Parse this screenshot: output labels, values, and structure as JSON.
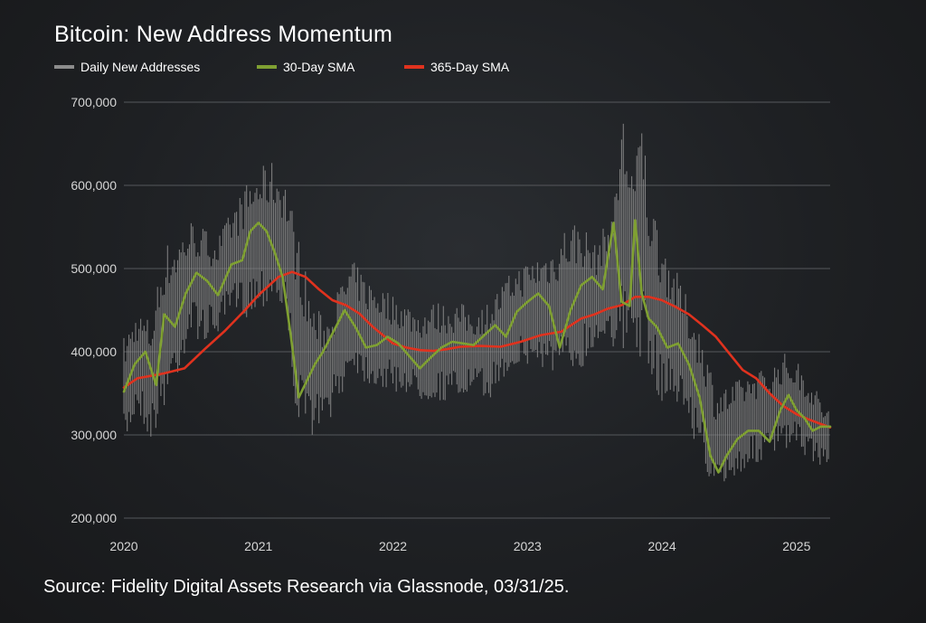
{
  "chart_data": {
    "type": "line",
    "title": "Bitcoin: New Address Momentum",
    "source": "Source: Fidelity Digital Assets Research via Glassnode, 03/31/25.",
    "xlabel": "",
    "ylabel": "",
    "xlim": [
      2020.0,
      2025.25
    ],
    "ylim": [
      200000,
      700000
    ],
    "yticks": [
      200000,
      300000,
      400000,
      500000,
      600000,
      700000
    ],
    "ytick_labels": [
      "200,000",
      "300,000",
      "400,000",
      "500,000",
      "600,000",
      "700,000"
    ],
    "xticks": [
      2020,
      2021,
      2022,
      2023,
      2024,
      2025
    ],
    "xtick_labels": [
      "2020",
      "2021",
      "2022",
      "2023",
      "2024",
      "2025"
    ],
    "grid": "horizontal",
    "legend_position": "top-left",
    "colors": {
      "daily": "#8c8c8c",
      "sma30": "#7fa032",
      "sma365": "#e0321e"
    },
    "series": [
      {
        "name": "30-Day SMA",
        "x": [
          2020.0,
          2020.08,
          2020.16,
          2020.24,
          2020.3,
          2020.38,
          2020.46,
          2020.54,
          2020.62,
          2020.7,
          2020.8,
          2020.88,
          2020.94,
          2021.0,
          2021.06,
          2021.12,
          2021.18,
          2021.24,
          2021.3,
          2021.36,
          2021.42,
          2021.48,
          2021.56,
          2021.64,
          2021.72,
          2021.8,
          2021.88,
          2021.96,
          2022.04,
          2022.12,
          2022.2,
          2022.28,
          2022.36,
          2022.44,
          2022.52,
          2022.6,
          2022.68,
          2022.76,
          2022.84,
          2022.92,
          2023.0,
          2023.08,
          2023.16,
          2023.24,
          2023.32,
          2023.4,
          2023.48,
          2023.56,
          2023.64,
          2023.7,
          2023.76,
          2023.8,
          2023.85,
          2023.9,
          2023.96,
          2024.04,
          2024.12,
          2024.2,
          2024.28,
          2024.36,
          2024.42,
          2024.48,
          2024.56,
          2024.64,
          2024.72,
          2024.8,
          2024.88,
          2024.94,
          2025.0,
          2025.06,
          2025.12,
          2025.18,
          2025.25
        ],
        "values": [
          352000,
          385000,
          400000,
          360000,
          445000,
          430000,
          470000,
          495000,
          485000,
          468000,
          505000,
          510000,
          545000,
          555000,
          545000,
          520000,
          490000,
          420000,
          345000,
          365000,
          385000,
          400000,
          425000,
          450000,
          430000,
          405000,
          408000,
          418000,
          410000,
          395000,
          380000,
          393000,
          405000,
          412000,
          410000,
          408000,
          420000,
          432000,
          418000,
          448000,
          460000,
          470000,
          455000,
          405000,
          450000,
          480000,
          490000,
          475000,
          555000,
          460000,
          455000,
          558000,
          470000,
          440000,
          430000,
          405000,
          410000,
          385000,
          345000,
          275000,
          255000,
          275000,
          295000,
          305000,
          305000,
          292000,
          330000,
          348000,
          330000,
          320000,
          305000,
          310000,
          310000
        ]
      },
      {
        "name": "365-Day SMA",
        "x": [
          2020.0,
          2020.1,
          2020.2,
          2020.3,
          2020.45,
          2020.6,
          2020.75,
          2020.9,
          2021.0,
          2021.15,
          2021.25,
          2021.35,
          2021.45,
          2021.55,
          2021.65,
          2021.75,
          2021.85,
          2022.0,
          2022.1,
          2022.2,
          2022.3,
          2022.4,
          2022.5,
          2022.65,
          2022.8,
          2022.95,
          2023.1,
          2023.25,
          2023.4,
          2023.5,
          2023.6,
          2023.7,
          2023.8,
          2023.9,
          2024.0,
          2024.1,
          2024.2,
          2024.3,
          2024.4,
          2024.5,
          2024.6,
          2024.7,
          2024.8,
          2024.9,
          2025.0,
          2025.1,
          2025.2,
          2025.25
        ],
        "values": [
          357000,
          368000,
          371000,
          374000,
          380000,
          403000,
          425000,
          450000,
          468000,
          490000,
          496000,
          490000,
          475000,
          462000,
          456000,
          446000,
          430000,
          410000,
          405000,
          402000,
          401000,
          403000,
          406000,
          407000,
          406000,
          412000,
          420000,
          424000,
          440000,
          445000,
          452000,
          456000,
          466000,
          466000,
          462000,
          454000,
          445000,
          432000,
          418000,
          398000,
          378000,
          368000,
          350000,
          335000,
          325000,
          318000,
          312000,
          309000
        ]
      }
    ],
    "daily_band": {
      "name": "Daily New Addresses",
      "x": [
        2020.0,
        2020.1,
        2020.2,
        2020.3,
        2020.4,
        2020.5,
        2020.6,
        2020.7,
        2020.8,
        2020.9,
        2021.0,
        2021.1,
        2021.2,
        2021.3,
        2021.4,
        2021.5,
        2021.6,
        2021.7,
        2021.8,
        2021.9,
        2022.0,
        2022.1,
        2022.2,
        2022.3,
        2022.4,
        2022.5,
        2022.6,
        2022.7,
        2022.8,
        2022.9,
        2023.0,
        2023.1,
        2023.2,
        2023.3,
        2023.4,
        2023.5,
        2023.6,
        2023.65,
        2023.7,
        2023.8,
        2023.85,
        2023.9,
        2024.0,
        2024.1,
        2024.2,
        2024.3,
        2024.4,
        2024.5,
        2024.6,
        2024.7,
        2024.8,
        2024.9,
        2025.0,
        2025.1,
        2025.2,
        2025.25
      ],
      "low": [
        280000,
        330000,
        290000,
        330000,
        370000,
        420000,
        410000,
        420000,
        440000,
        440000,
        450000,
        460000,
        440000,
        300000,
        300000,
        310000,
        340000,
        380000,
        360000,
        355000,
        350000,
        350000,
        340000,
        340000,
        340000,
        340000,
        350000,
        340000,
        360000,
        380000,
        380000,
        380000,
        370000,
        360000,
        380000,
        400000,
        420000,
        400000,
        380000,
        400000,
        390000,
        360000,
        340000,
        340000,
        310000,
        270000,
        220000,
        240000,
        255000,
        265000,
        270000,
        280000,
        280000,
        270000,
        260000,
        265000
      ],
      "high": [
        420000,
        450000,
        440000,
        530000,
        540000,
        560000,
        550000,
        540000,
        570000,
        600000,
        620000,
        630000,
        610000,
        540000,
        460000,
        440000,
        480000,
        510000,
        490000,
        480000,
        470000,
        460000,
        450000,
        460000,
        460000,
        460000,
        450000,
        460000,
        480000,
        500000,
        510000,
        520000,
        530000,
        560000,
        560000,
        530000,
        560000,
        590000,
        700000,
        620000,
        700000,
        600000,
        540000,
        500000,
        460000,
        420000,
        360000,
        360000,
        370000,
        380000,
        380000,
        400000,
        390000,
        370000,
        340000,
        330000
      ]
    }
  },
  "legend": {
    "items": [
      {
        "label": "Daily New Addresses",
        "color": "#8c8c8c"
      },
      {
        "label": "30-Day SMA",
        "color": "#7fa032"
      },
      {
        "label": "365-Day SMA",
        "color": "#e0321e"
      }
    ]
  }
}
